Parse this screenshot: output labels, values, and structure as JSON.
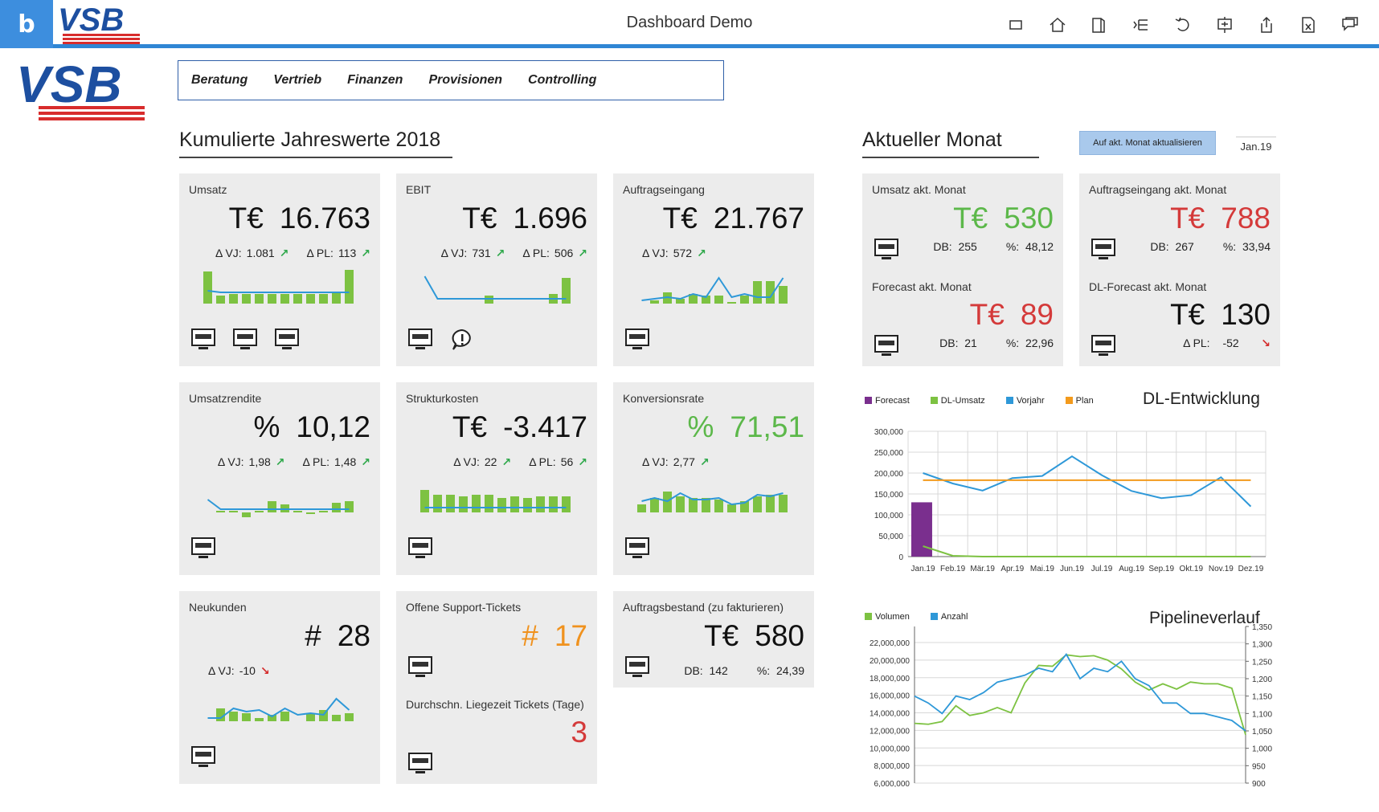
{
  "app": {
    "title": "Dashboard Demo",
    "tile_letter": "b",
    "logo_text": "VSB",
    "toolbar_icons": [
      "window-icon",
      "home-icon",
      "book-icon",
      "tree-icon",
      "undo-icon",
      "presentation-icon",
      "share-icon",
      "excel-icon",
      "comment-icon"
    ]
  },
  "nav": {
    "items": [
      "Beratung",
      "Vertrieb",
      "Finanzen",
      "Provisionen",
      "Controlling"
    ]
  },
  "sections": {
    "cumulative_title": "Kumulierte Jahreswerte 2018",
    "current_title": "Aktueller Monat",
    "update_button": "Auf akt. Monat aktualisieren",
    "month_value": "Jan.19"
  },
  "kpis": [
    {
      "label": "Umsatz",
      "unit": "T€",
      "value": "16.763",
      "dvj_label": "Δ VJ:",
      "dvj": "1.081",
      "dpl_label": "Δ PL:",
      "dpl": "113",
      "icons": 3,
      "bars": [
        40,
        10,
        12,
        12,
        12,
        12,
        12,
        12,
        12,
        12,
        14,
        42
      ],
      "line": [
        16,
        14,
        14,
        14,
        14,
        14,
        14,
        14,
        14,
        14,
        14,
        14
      ]
    },
    {
      "label": "EBIT",
      "unit": "T€",
      "value": "1.696",
      "dvj_label": "Δ VJ:",
      "dvj": "731",
      "dpl_label": "Δ PL:",
      "dpl": "506",
      "icons": 1,
      "alert": true,
      "bars": [
        0,
        0,
        0,
        0,
        0,
        10,
        0,
        0,
        0,
        0,
        12,
        32
      ],
      "line": [
        34,
        6,
        6,
        6,
        6,
        6,
        6,
        6,
        6,
        6,
        6,
        6
      ]
    },
    {
      "label": "Auftragseingang",
      "unit": "T€",
      "value": "21.767",
      "dvj_label": "Δ VJ:",
      "dvj": "572",
      "dpl_label": "",
      "dpl": "",
      "icons": 1,
      "bars": [
        0,
        4,
        14,
        6,
        12,
        10,
        10,
        2,
        10,
        28,
        28,
        22
      ],
      "line": [
        4,
        6,
        8,
        6,
        12,
        8,
        32,
        8,
        12,
        8,
        8,
        32
      ]
    },
    {
      "label": "Umsatzrendite",
      "unit": "%",
      "value": "10,12",
      "dvj_label": "Δ VJ:",
      "dvj": "1,98",
      "dpl_label": "Δ PL:",
      "dpl": "1,48",
      "icons": 1,
      "bars": [
        0,
        2,
        2,
        -6,
        2,
        14,
        10,
        2,
        -2,
        2,
        12,
        14
      ],
      "line": [
        16,
        4,
        4,
        4,
        4,
        4,
        4,
        4,
        4,
        4,
        4,
        4
      ]
    },
    {
      "label": "Strukturkosten",
      "unit": "T€",
      "value": "-3.417",
      "dvj_label": "Δ VJ:",
      "dvj": "22",
      "dpl_label": "Δ PL:",
      "dpl": "56",
      "icons": 1,
      "bars": [
        28,
        22,
        22,
        20,
        22,
        22,
        18,
        20,
        18,
        20,
        20,
        20
      ],
      "line": [
        6,
        6,
        6,
        6,
        6,
        6,
        6,
        6,
        6,
        6,
        6,
        6
      ]
    },
    {
      "label": "Konversionsrate",
      "unit": "%",
      "value": "71,51",
      "green": true,
      "dvj_label": "Δ VJ:",
      "dvj": "2,77",
      "dpl_label": "",
      "dpl": "",
      "icons": 1,
      "bars": [
        10,
        18,
        26,
        20,
        18,
        18,
        16,
        10,
        14,
        20,
        22,
        22
      ],
      "line": [
        14,
        18,
        14,
        24,
        16,
        16,
        18,
        10,
        12,
        22,
        20,
        24
      ]
    },
    {
      "label": "Neukunden",
      "unit": "#",
      "value": "28",
      "dvj_label": "Δ VJ:",
      "dvj": "-10",
      "dvj_down": true,
      "dpl_label": "",
      "dpl": "",
      "icons": 1,
      "bars": [
        0,
        16,
        12,
        10,
        4,
        8,
        12,
        0,
        10,
        14,
        8,
        10
      ],
      "line": [
        4,
        4,
        16,
        12,
        14,
        6,
        16,
        8,
        10,
        8,
        28,
        14
      ]
    }
  ],
  "support": {
    "label": "Offene Support-Tickets",
    "unit": "#",
    "value": "17",
    "label2": "Durchschn. Liegezeit Tickets (Tage)",
    "value2": "3"
  },
  "backlog": {
    "label": "Auftragsbestand (zu fakturieren)",
    "unit": "T€",
    "value": "580",
    "db_label": "DB:",
    "db": "142",
    "pct_label": "%:",
    "pct": "24,39"
  },
  "current": [
    {
      "label": "Umsatz akt. Monat",
      "unit": "T€",
      "value": "530",
      "color": "green",
      "db_label": "DB:",
      "db": "255",
      "pct_label": "%:",
      "pct": "48,12"
    },
    {
      "label": "Auftragseingang akt. Monat",
      "unit": "T€",
      "value": "788",
      "color": "red",
      "db_label": "DB:",
      "db": "267",
      "pct_label": "%:",
      "pct": "33,94"
    },
    {
      "label": "Forecast akt. Monat",
      "unit": "T€",
      "value": "89",
      "color": "red",
      "db_label": "DB:",
      "db": "21",
      "pct_label": "%:",
      "pct": "22,96"
    },
    {
      "label": "DL-Forecast akt. Monat",
      "unit": "T€",
      "value": "130",
      "color": "black",
      "dpl_label": "Δ PL:",
      "dpl": "-52"
    }
  ],
  "chart_data": [
    {
      "type": "line",
      "title": "DL-Entwicklung",
      "legend": [
        "Forecast",
        "DL-Umsatz",
        "Vorjahr",
        "Plan"
      ],
      "colors": {
        "Forecast": "#7a2f8e",
        "DL-Umsatz": "#7dc242",
        "Vorjahr": "#2e98d8",
        "Plan": "#f39a1c"
      },
      "categories": [
        "Jan.19",
        "Feb.19",
        "Mär.19",
        "Apr.19",
        "Mai.19",
        "Jun.19",
        "Jul.19",
        "Aug.19",
        "Sep.19",
        "Okt.19",
        "Nov.19",
        "Dez.19"
      ],
      "y_ticks": [
        "300,000",
        "250,000",
        "200,000",
        "150,000",
        "100,000",
        "50,000",
        "0"
      ],
      "ylim": [
        0,
        300000
      ],
      "series": [
        {
          "name": "Forecast",
          "kind": "bar",
          "values": [
            130000,
            0,
            0,
            0,
            0,
            0,
            0,
            0,
            0,
            0,
            0,
            0
          ]
        },
        {
          "name": "DL-Umsatz",
          "values": [
            25000,
            2000,
            0,
            0,
            0,
            0,
            0,
            0,
            0,
            0,
            0,
            0
          ]
        },
        {
          "name": "Vorjahr",
          "values": [
            200000,
            175000,
            158000,
            188000,
            193000,
            240000,
            195000,
            157000,
            140000,
            147000,
            190000,
            120000
          ]
        },
        {
          "name": "Plan",
          "values": [
            183000,
            183000,
            183000,
            183000,
            183000,
            183000,
            183000,
            183000,
            183000,
            183000,
            183000,
            183000
          ]
        }
      ]
    },
    {
      "type": "line",
      "title": "Pipelineverlauf",
      "legend": [
        "Volumen",
        "Anzahl"
      ],
      "colors": {
        "Volumen": "#7dc242",
        "Anzahl": "#2e98d8"
      },
      "y_ticks": [
        "22,000,000",
        "20,000,000",
        "18,000,000",
        "16,000,000",
        "14,000,000",
        "12,000,000",
        "10,000,000",
        "8,000,000",
        "6,000,000"
      ],
      "y2_ticks": [
        "1,350",
        "1,300",
        "1,250",
        "1,200",
        "1,150",
        "1,100",
        "1,050",
        "1,000",
        "950",
        "900"
      ],
      "ylim": [
        6000000,
        22000000
      ],
      "y2lim": [
        900,
        1350
      ],
      "series": [
        {
          "name": "Volumen",
          "axis": "left",
          "values": [
            12800000,
            12700000,
            13000000,
            14800000,
            13700000,
            14000000,
            14600000,
            14000000,
            17400000,
            19400000,
            19300000,
            20600000,
            20400000,
            20500000,
            20000000,
            19000000,
            17500000,
            16600000,
            17300000,
            16700000,
            17500000,
            17300000,
            17300000,
            16800000,
            11500000
          ]
        },
        {
          "name": "Anzahl",
          "axis": "right",
          "values": [
            1150,
            1130,
            1100,
            1150,
            1140,
            1160,
            1190,
            1200,
            1210,
            1230,
            1220,
            1270,
            1200,
            1230,
            1220,
            1250,
            1200,
            1180,
            1130,
            1130,
            1100,
            1100,
            1090,
            1080,
            1050
          ]
        }
      ]
    }
  ]
}
